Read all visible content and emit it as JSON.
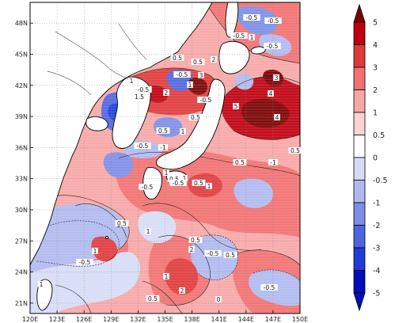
{
  "map": {
    "lon_ticks": [
      "120E",
      "123E",
      "126E",
      "129E",
      "132E",
      "135E",
      "138E",
      "141E",
      "144E",
      "147E",
      "150E"
    ],
    "lat_ticks": [
      "21N",
      "24N",
      "27N",
      "30N",
      "33N",
      "36N",
      "39N",
      "42N",
      "45N",
      "48N"
    ],
    "lon_range": [
      120,
      150
    ],
    "lat_range": [
      20,
      50
    ]
  },
  "colorbar": {
    "levels": [
      "5",
      "4",
      "3",
      "2",
      "1",
      "0.5",
      "0",
      "-0.5",
      "-1",
      "-2",
      "-3",
      "-4",
      "-5"
    ],
    "colors": [
      "#7a0000",
      "#c0000f",
      "#e0393a",
      "#f27070",
      "#f8a6a6",
      "#fbd3d3",
      "#ffffff",
      "#d6dcf6",
      "#b0b9ef",
      "#7c8ee6",
      "#4e65e0",
      "#1f3cd9",
      "#0010b8"
    ]
  },
  "contour_labels": [
    {
      "text": "-0.5"
    },
    {
      "text": "-0.5"
    },
    {
      "text": "1"
    },
    {
      "text": "-0.5"
    },
    {
      "text": "-0.5"
    },
    {
      "text": "0.5"
    },
    {
      "text": "2"
    },
    {
      "text": "0.5"
    },
    {
      "text": "-0.5"
    },
    {
      "text": "3"
    },
    {
      "text": "1"
    },
    {
      "text": "-0.5"
    },
    {
      "text": "1.5"
    },
    {
      "text": "2"
    },
    {
      "text": "1"
    },
    {
      "text": "4"
    },
    {
      "text": "3"
    },
    {
      "text": "5"
    },
    {
      "text": "4"
    },
    {
      "text": "0.5"
    },
    {
      "text": "-0.5"
    },
    {
      "text": "-1"
    },
    {
      "text": "1"
    },
    {
      "text": "0.5"
    },
    {
      "text": "-0.5"
    },
    {
      "text": "1"
    },
    {
      "text": "0.5"
    },
    {
      "text": "0.5"
    },
    {
      "text": "1"
    },
    {
      "text": "-0.5"
    },
    {
      "text": "1"
    },
    {
      "text": "0.5"
    },
    {
      "text": "-1"
    },
    {
      "text": "0.5"
    },
    {
      "text": "-0.5"
    },
    {
      "text": "1"
    },
    {
      "text": "0.5"
    },
    {
      "text": "-0.5"
    },
    {
      "text": "0.5"
    },
    {
      "text": "-0.5"
    },
    {
      "text": "2"
    },
    {
      "text": "0.5"
    },
    {
      "text": "1"
    },
    {
      "text": "2"
    },
    {
      "text": "1"
    },
    {
      "text": "0"
    },
    {
      "text": "0.5"
    },
    {
      "text": "-0.5"
    },
    {
      "text": "1"
    }
  ]
}
